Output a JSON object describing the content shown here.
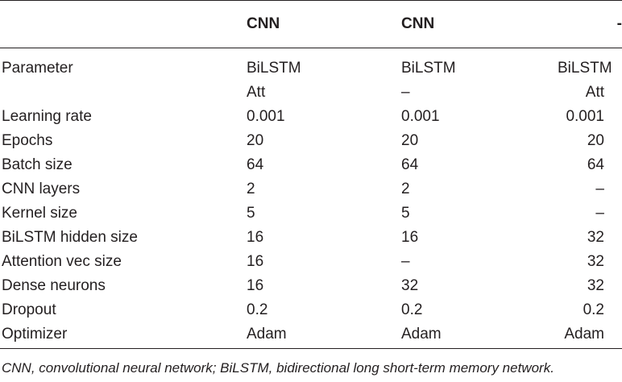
{
  "table": {
    "headers": [
      "",
      "CNN",
      "CNN",
      "-"
    ],
    "rows": [
      [
        "Parameter",
        "BiLSTM",
        "BiLSTM",
        "BiLSTM"
      ],
      [
        "",
        "Att",
        "–",
        "Att"
      ],
      [
        "Learning rate",
        "0.001",
        "0.001",
        "0.001"
      ],
      [
        "Epochs",
        "20",
        "20",
        "20"
      ],
      [
        "Batch size",
        "64",
        "64",
        "64"
      ],
      [
        "CNN layers",
        "2",
        "2",
        "–"
      ],
      [
        "Kernel size",
        "5",
        "5",
        "–"
      ],
      [
        "BiLSTM hidden size",
        "16",
        "16",
        "32"
      ],
      [
        "Attention vec size",
        "16",
        "–",
        "32"
      ],
      [
        "Dense neurons",
        "16",
        "32",
        "32"
      ],
      [
        "Dropout",
        "0.2",
        "0.2",
        "0.2"
      ],
      [
        "Optimizer",
        "Adam",
        "Adam",
        "Adam"
      ]
    ]
  },
  "footnote": "CNN, convolutional neural network; BiLSTM, bidirectional long short-term memory network."
}
